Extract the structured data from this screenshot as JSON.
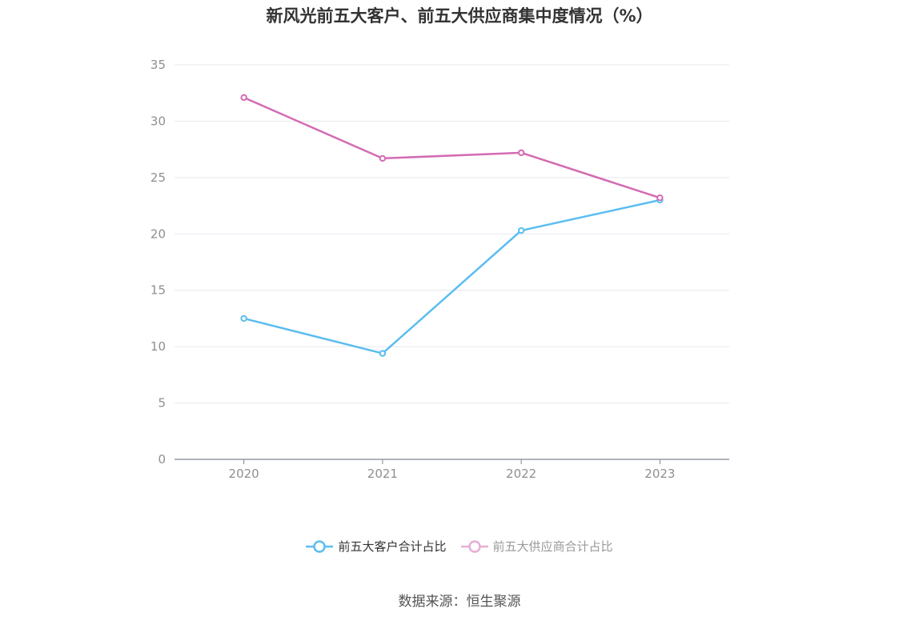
{
  "title": "新风光前五大客户、前五大供应商集中度情况（%）",
  "source": "数据来源：恒生聚源",
  "chart_data": {
    "type": "line",
    "title": "新风光前五大客户、前五大供应商集中度情况（%）",
    "categories": [
      "2020",
      "2021",
      "2022",
      "2023"
    ],
    "series": [
      {
        "name": "前五大客户合计占比",
        "values": [
          12.5,
          9.4,
          20.3,
          23.0
        ],
        "color": "#5bbdf0"
      },
      {
        "name": "前五大供应商合计占比",
        "values": [
          32.1,
          26.7,
          27.2,
          23.2
        ],
        "color": "#d46bb3"
      }
    ],
    "yticks": [
      "0",
      "5",
      "10",
      "15",
      "20",
      "25",
      "30",
      "35"
    ],
    "ylim": [
      0,
      35
    ],
    "grid": true,
    "legend": "bottom"
  }
}
